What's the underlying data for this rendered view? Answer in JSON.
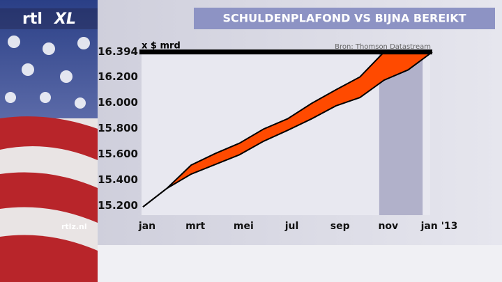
{
  "branding": {
    "logo_left": "rtl",
    "logo_right": "XL",
    "website": "rtlz.nl"
  },
  "chart_data": {
    "type": "band",
    "title": "SCHULDENPLAFOND VS BIJNA BEREIKT",
    "y_label": "x $ mrd",
    "source": "Bron: Thomson Datastream",
    "x": [
      0,
      1,
      2,
      3,
      4,
      5,
      6,
      7,
      8,
      9,
      10,
      11,
      12
    ],
    "xlim": [
      0,
      12
    ],
    "xticks": [
      {
        "value": 0,
        "label": "jan"
      },
      {
        "value": 2,
        "label": "mrt"
      },
      {
        "value": 4,
        "label": "mei"
      },
      {
        "value": 6,
        "label": "jul"
      },
      {
        "value": 8,
        "label": "sep"
      },
      {
        "value": 10,
        "label": "nov"
      },
      {
        "value": 12,
        "label": "jan '13"
      }
    ],
    "ylim": [
      15180,
      16430
    ],
    "yticks": [
      {
        "value": 15200,
        "label": "15.200"
      },
      {
        "value": 15400,
        "label": "15.400"
      },
      {
        "value": 15600,
        "label": "15.600"
      },
      {
        "value": 15800,
        "label": "15.800"
      },
      {
        "value": 16000,
        "label": "16.000"
      },
      {
        "value": 16200,
        "label": "16.200"
      },
      {
        "value": 16394,
        "label": "16.394"
      }
    ],
    "ceiling": 16394,
    "shaded_range": [
      9.8,
      11.6
    ],
    "fill_color": "#ff4a00",
    "series": [
      {
        "color": "#000000",
        "values": [
          15190,
          15335,
          15515,
          15605,
          15685,
          15795,
          15875,
          15995,
          16100,
          16200,
          16394,
          16394,
          16394
        ]
      },
      {
        "color": "#000000",
        "values": [
          15190,
          15335,
          15445,
          15520,
          15595,
          15700,
          15785,
          15875,
          15975,
          16040,
          16175,
          16255,
          16394
        ]
      }
    ]
  }
}
